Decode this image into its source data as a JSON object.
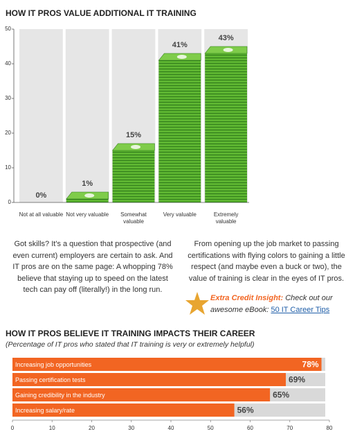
{
  "chart_data": [
    {
      "type": "bar",
      "title": "HOW IT PROS VALUE ADDITIONAL IT TRAINING",
      "categories": [
        "Not at all valuable",
        "Not very valuable",
        "Somewhat valuable",
        "Very valuable",
        "Extremely valuable"
      ],
      "values": [
        0,
        1,
        15,
        41,
        43
      ],
      "value_labels": [
        "0%",
        "1%",
        "15%",
        "41%",
        "43%"
      ],
      "color": "#5db531",
      "ylim": [
        0,
        50
      ],
      "yticks": [
        0,
        10,
        20,
        30,
        40,
        50
      ]
    },
    {
      "type": "hbar",
      "title": "HOW IT PROS BELIEVE IT TRAINING IMPACTS THEIR CAREER",
      "subtitle": "(Percentage of IT pros who stated that IT training is very or extremely helpful)",
      "categories": [
        "Increasing job opportunities",
        "Passing certification tests",
        "Gaining credibility in the industry",
        "Increasing salary/rate"
      ],
      "values": [
        78,
        69,
        65,
        56
      ],
      "value_labels": [
        "78%",
        "69%",
        "65%",
        "56%"
      ],
      "color": "#f26522",
      "xlim": [
        0,
        80
      ],
      "xticks": [
        0,
        10,
        20,
        30,
        40,
        50,
        60,
        70,
        80
      ]
    }
  ],
  "body": {
    "left_paragraph": "Got skills? It's a question that prospective (and even current) employers are certain to ask. And IT pros are on the same page: A whopping 78% believe that staying up to speed on the latest tech can pay off (literally!) in the long run.",
    "right_paragraph": "From opening up the job market to passing certifications with flying colors to gaining a little respect (and maybe even a buck or two), the value of training is clear in the eyes of IT pros.",
    "insight_label": "Extra Credit Insight:",
    "insight_text": "Check out our awesome eBook:",
    "insight_link": "50 IT Career Tips"
  }
}
